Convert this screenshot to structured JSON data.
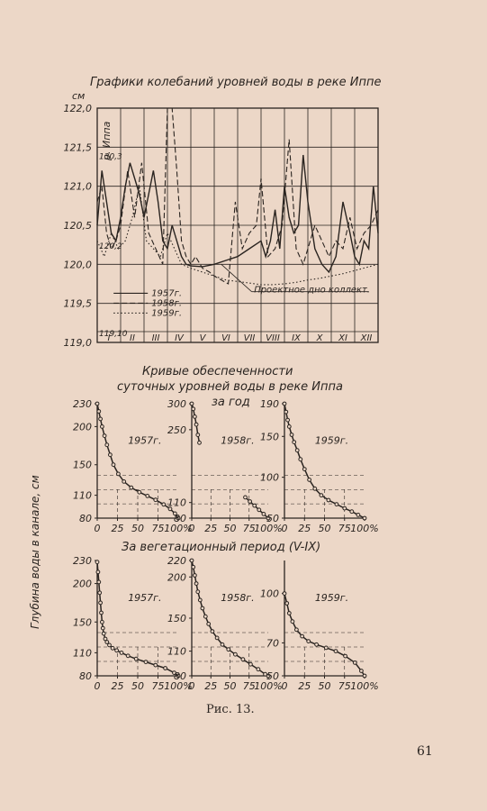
{
  "figure": {
    "title1": "Графики колебаний уровней воды в реке Иппе",
    "title2_line1": "Кривые обеспеченности",
    "title2_line2": "суточных уровней воды в реке Иппа",
    "title2_line3": "за год",
    "title3": "За вегетационный период (V-IX)",
    "y_axis_label": "Глубина воды в канале, см",
    "caption": "Рис. 13.",
    "page_number": "61"
  },
  "colors": {
    "paper": "#ecd7c7",
    "ink": "#2a2420"
  },
  "chart_data": [
    {
      "id": "levels",
      "type": "line",
      "title": "Графики колебаний уровней воды в реке Иппе",
      "ylabel": "см",
      "y_side_label": "р. Иппа",
      "ylim": [
        119.0,
        122.0
      ],
      "yticks": [
        "119,0",
        "119,5",
        "120,0",
        "120,5",
        "121,0",
        "121,5",
        "122,0"
      ],
      "inner_tick_labels": [
        "130,3",
        "120,2",
        "119,10"
      ],
      "months": [
        "I",
        "II",
        "III",
        "IV",
        "V",
        "VI",
        "VII",
        "VIII",
        "IX",
        "X",
        "XI",
        "XII"
      ],
      "annotation": "Проектное дно коллект.",
      "legend": [
        "1957г.",
        "1958г.",
        "1959г."
      ],
      "series": [
        {
          "name": "1957г.",
          "style": "solid",
          "x": [
            0,
            0.2,
            0.4,
            0.6,
            0.8,
            1.0,
            1.2,
            1.4,
            1.6,
            1.8,
            2.0,
            2.2,
            2.4,
            2.6,
            2.8,
            3.0,
            3.2,
            3.4,
            3.6,
            3.8,
            4.0,
            4.5,
            5.0,
            5.5,
            6.0,
            6.5,
            7.0,
            7.2,
            7.4,
            7.6,
            7.8,
            8.0,
            8.2,
            8.4,
            8.6,
            8.8,
            9.0,
            9.3,
            9.6,
            9.9,
            10.2,
            10.5,
            10.8,
            11.0,
            11.2,
            11.4,
            11.6,
            11.8,
            12.0
          ],
          "y": [
            120.5,
            121.2,
            120.8,
            120.4,
            120.3,
            120.6,
            121.0,
            121.3,
            121.1,
            120.9,
            120.6,
            120.9,
            121.2,
            120.8,
            120.3,
            120.2,
            120.5,
            120.3,
            120.1,
            120.0,
            119.98,
            119.97,
            120.0,
            120.05,
            120.1,
            120.2,
            120.3,
            120.1,
            120.3,
            120.7,
            120.2,
            121.0,
            120.6,
            120.4,
            120.5,
            121.4,
            120.8,
            120.2,
            120.0,
            119.9,
            120.1,
            120.8,
            120.4,
            120.1,
            120.0,
            120.3,
            120.2,
            121.0,
            120.4
          ]
        },
        {
          "name": "1958г.",
          "style": "dashed",
          "x": [
            0,
            0.2,
            0.4,
            0.6,
            0.8,
            1.0,
            1.3,
            1.6,
            1.9,
            2.2,
            2.5,
            2.8,
            3.0,
            3.2,
            3.4,
            3.6,
            3.8,
            4.0,
            4.2,
            4.5,
            4.8,
            5.0,
            5.3,
            5.6,
            5.9,
            6.2,
            6.5,
            6.8,
            7.0,
            7.3,
            7.6,
            7.9,
            8.2,
            8.5,
            8.8,
            9.0,
            9.3,
            9.6,
            9.9,
            10.2,
            10.5,
            10.8,
            11.1,
            11.4,
            11.7,
            12.0
          ],
          "y": [
            120.8,
            121.0,
            120.4,
            120.2,
            120.3,
            120.5,
            121.2,
            120.6,
            121.3,
            120.4,
            120.2,
            120.0,
            122.0,
            122.0,
            121.2,
            120.3,
            120.1,
            120.0,
            120.1,
            119.95,
            119.9,
            119.85,
            119.8,
            119.75,
            120.8,
            120.2,
            120.4,
            120.5,
            121.1,
            120.1,
            120.2,
            120.5,
            121.6,
            120.2,
            120.0,
            120.2,
            120.5,
            120.3,
            120.1,
            120.3,
            120.2,
            120.6,
            120.2,
            120.4,
            120.5,
            120.7
          ]
        },
        {
          "name": "1959г.",
          "style": "dotted",
          "x": [
            0,
            0.3,
            0.6,
            0.9,
            1.2,
            1.5,
            1.8,
            2.1,
            2.4,
            2.7,
            3.0,
            3.3,
            3.6,
            4.0,
            4.5,
            5.0,
            5.5,
            6.0,
            6.5,
            7.0,
            7.5,
            8.0,
            8.5,
            9.0,
            9.5,
            10.0,
            10.5,
            11.0,
            11.5,
            12.0
          ],
          "y": [
            120.3,
            120.1,
            120.4,
            120.2,
            120.3,
            120.6,
            121.0,
            120.3,
            120.2,
            120.1,
            120.4,
            120.2,
            120.0,
            119.95,
            119.9,
            119.85,
            119.8,
            119.78,
            119.76,
            119.74,
            119.74,
            119.75,
            119.77,
            119.8,
            119.82,
            119.85,
            119.88,
            119.92,
            119.96,
            120.0
          ]
        }
      ]
    },
    {
      "id": "annual",
      "type": "line",
      "title": "Кривые обеспеченности суточных уровней воды в реке Иппа за год",
      "panels": [
        {
          "label": "1957г.",
          "ylim": [
            80,
            230
          ],
          "yticks": [
            "80",
            "110",
            "150",
            "200",
            "230"
          ],
          "x": [
            0,
            2,
            4,
            6,
            9,
            12,
            16,
            20,
            26,
            33,
            42,
            52,
            62,
            72,
            82,
            90,
            96,
            100
          ],
          "y": [
            230,
            220,
            210,
            200,
            188,
            176,
            163,
            150,
            138,
            128,
            120,
            114,
            109,
            104,
            98,
            92,
            86,
            80
          ]
        },
        {
          "label": "1958г.",
          "ylim": [
            80,
            300
          ],
          "yticks": [
            "80",
            "110",
            "250",
            "300"
          ],
          "x": [
            0,
            2,
            4,
            6,
            8,
            10,
            70,
            76,
            82,
            88,
            94,
            100
          ],
          "y": [
            300,
            290,
            275,
            260,
            240,
            225,
            120,
            112,
            104,
            96,
            88,
            80
          ],
          "gap_after_index": 5
        },
        {
          "label": "1959г.",
          "ylim": [
            50,
            190
          ],
          "yticks": [
            "50",
            "100",
            "150",
            "190"
          ],
          "x": [
            0,
            2,
            4,
            6,
            9,
            12,
            16,
            20,
            25,
            31,
            38,
            46,
            55,
            65,
            75,
            84,
            92,
            100
          ],
          "y": [
            190,
            180,
            170,
            162,
            152,
            143,
            133,
            122,
            110,
            97,
            86,
            78,
            72,
            67,
            62,
            58,
            54,
            50
          ]
        }
      ],
      "xticks": [
        "0",
        "25",
        "50",
        "75",
        "100%"
      ]
    },
    {
      "id": "vegetation",
      "type": "line",
      "title": "За вегетационный период (V-IX)",
      "panels": [
        {
          "label": "1957г.",
          "ylim": [
            80,
            230
          ],
          "yticks": [
            "80",
            "110",
            "150",
            "200",
            "230"
          ],
          "x": [
            0,
            1,
            2,
            3,
            4,
            5,
            6,
            7,
            8,
            10,
            12,
            15,
            19,
            24,
            30,
            38,
            48,
            60,
            72,
            84,
            95,
            100
          ],
          "y": [
            228,
            215,
            202,
            188,
            175,
            162,
            150,
            142,
            135,
            128,
            124,
            120,
            116,
            113,
            110,
            106,
            102,
            98,
            94,
            90,
            84,
            80
          ]
        },
        {
          "label": "1958г.",
          "ylim": [
            80,
            220
          ],
          "yticks": [
            "80",
            "110",
            "150",
            "200",
            "220"
          ],
          "x": [
            0,
            2,
            4,
            6,
            8,
            11,
            14,
            18,
            22,
            27,
            33,
            40,
            48,
            57,
            67,
            77,
            87,
            96,
            100
          ],
          "y": [
            220,
            212,
            202,
            192,
            182,
            172,
            162,
            152,
            143,
            134,
            126,
            118,
            112,
            106,
            100,
            94,
            88,
            82,
            80
          ]
        },
        {
          "label": "1959г.",
          "ylim": [
            50,
            120
          ],
          "yticks": [
            "50",
            "70",
            "100"
          ],
          "x": [
            0,
            3,
            6,
            10,
            15,
            22,
            30,
            40,
            52,
            64,
            76,
            88,
            96,
            100
          ],
          "y": [
            100,
            94,
            88,
            83,
            78,
            74,
            71,
            69,
            67,
            65,
            62,
            58,
            53,
            50
          ]
        }
      ],
      "xticks": [
        "0",
        "25",
        "50",
        "75",
        "100%"
      ]
    }
  ]
}
